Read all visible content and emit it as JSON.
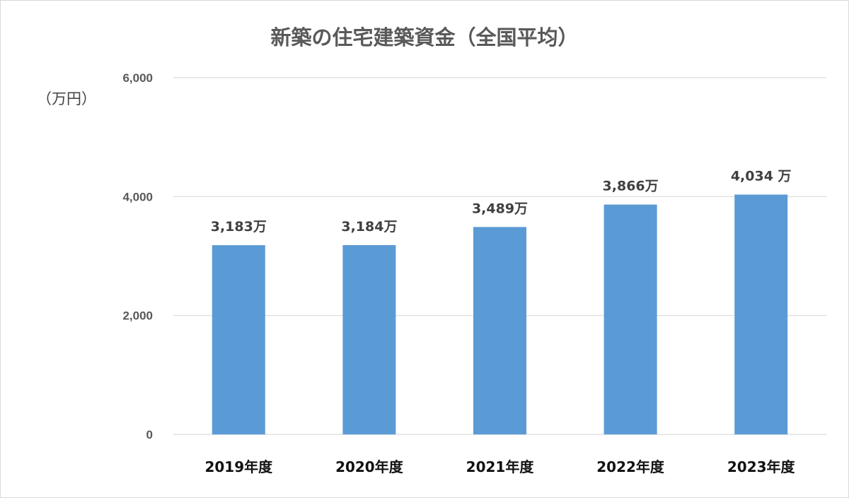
{
  "chart_data": {
    "type": "bar",
    "title": "新築の住宅建築資金（全国平均）",
    "ylabel": "（万円）",
    "xlabel": "",
    "categories": [
      "2019年度",
      "2020年度",
      "2021年度",
      "2022年度",
      "2023年度"
    ],
    "values": [
      3183,
      3184,
      3489,
      3866,
      4034
    ],
    "data_labels": [
      "3,183万",
      "3,184万",
      "3,489万",
      "3,866万",
      "4,034 万"
    ],
    "ylim": [
      0,
      6000
    ],
    "yticks": [
      0,
      2000,
      4000,
      6000
    ],
    "ytick_labels": [
      "0",
      "2,000",
      "4,000",
      "6,000"
    ],
    "grid": true,
    "legend": "none",
    "colors": {
      "bar": "#5b9bd5",
      "grid": "#d9d9d9"
    }
  }
}
